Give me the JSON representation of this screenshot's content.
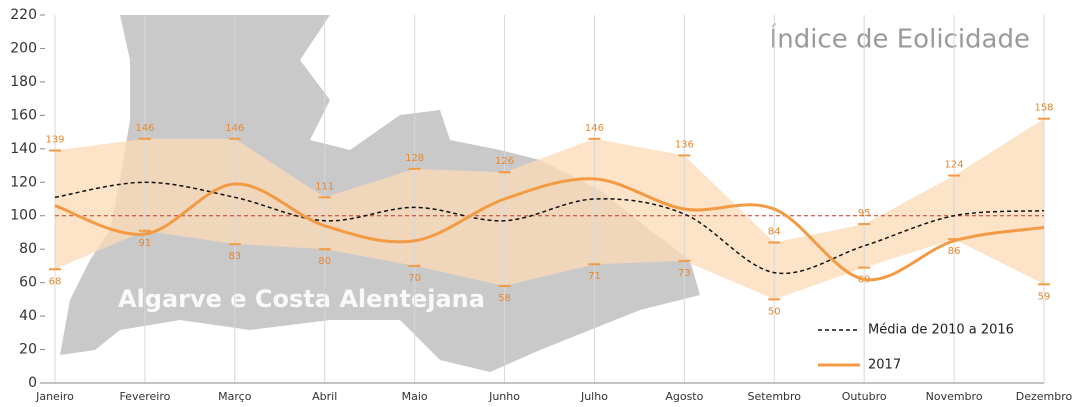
{
  "chart_data": {
    "type": "line",
    "title": "Índice de Eolicidade",
    "annotation": "Algarve e Costa Alentejana",
    "categories": [
      "Janeiro",
      "Fevereiro",
      "Março",
      "Abril",
      "Maio",
      "Junho",
      "Julho",
      "Agosto",
      "Setembro",
      "Outubro",
      "Novembro",
      "Dezembro"
    ],
    "ylim": [
      0,
      220
    ],
    "yticks": [
      0,
      20,
      40,
      60,
      80,
      100,
      120,
      140,
      160,
      180,
      200,
      220
    ],
    "grid": "x",
    "series": [
      {
        "name": "Média de 2010 a 2016",
        "color": "#111111",
        "dashed": true,
        "values": [
          111,
          120,
          111,
          97,
          105,
          97,
          110,
          101,
          66,
          82,
          100,
          103
        ]
      },
      {
        "name": "2017",
        "color": "#f39a45",
        "dashed": false,
        "values": [
          106,
          89,
          119,
          94,
          85,
          110,
          122,
          104,
          104,
          62,
          85,
          93
        ]
      }
    ],
    "range": {
      "color": "#fcd9b6",
      "max": [
        139,
        146,
        146,
        111,
        128,
        126,
        146,
        136,
        84,
        95,
        124,
        158
      ],
      "min": [
        68,
        91,
        83,
        80,
        70,
        58,
        71,
        73,
        50,
        69,
        86,
        59
      ]
    },
    "reference_line": {
      "value": 100,
      "color": "#c0392b"
    }
  }
}
